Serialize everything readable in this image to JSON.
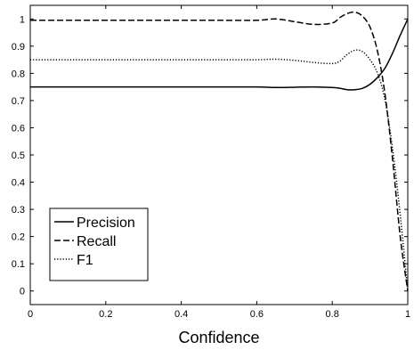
{
  "chart_data": {
    "type": "line",
    "title": "",
    "xlabel": "Confidence",
    "ylabel": "",
    "xlim": [
      0,
      1
    ],
    "ylim": [
      -0.05,
      1.05
    ],
    "grid": false,
    "legend_position": "bottom-left",
    "x_ticks": [
      "0",
      "0.2",
      "0.4",
      "0.6",
      "0.8",
      "1"
    ],
    "y_ticks": [
      "0",
      "0.1",
      "0.2",
      "0.3",
      "0.4",
      "0.5",
      "0.6",
      "0.7",
      "0.8",
      "0.9",
      "1"
    ],
    "x": [
      0,
      0.1,
      0.2,
      0.3,
      0.4,
      0.5,
      0.6,
      0.65,
      0.7,
      0.75,
      0.8,
      0.82,
      0.84,
      0.86,
      0.88,
      0.9,
      0.92,
      0.94,
      0.96,
      0.98,
      1.0
    ],
    "series": [
      {
        "name": "Precision",
        "style": "solid",
        "color": "#000000",
        "values": [
          0.75,
          0.75,
          0.75,
          0.75,
          0.75,
          0.75,
          0.75,
          0.748,
          0.749,
          0.75,
          0.748,
          0.745,
          0.74,
          0.74,
          0.745,
          0.76,
          0.785,
          0.82,
          0.875,
          0.94,
          1.0
        ]
      },
      {
        "name": "Recall",
        "style": "dashed",
        "color": "#000000",
        "values": [
          0.995,
          0.995,
          0.995,
          0.995,
          0.995,
          0.995,
          0.995,
          1.0,
          0.99,
          0.98,
          0.985,
          1.005,
          1.02,
          1.025,
          1.01,
          0.97,
          0.88,
          0.72,
          0.48,
          0.2,
          0.0
        ]
      },
      {
        "name": "F1",
        "style": "dotted",
        "color": "#000000",
        "values": [
          0.85,
          0.85,
          0.85,
          0.85,
          0.85,
          0.85,
          0.85,
          0.852,
          0.848,
          0.84,
          0.836,
          0.845,
          0.87,
          0.885,
          0.88,
          0.85,
          0.8,
          0.7,
          0.52,
          0.28,
          0.0
        ]
      }
    ]
  }
}
